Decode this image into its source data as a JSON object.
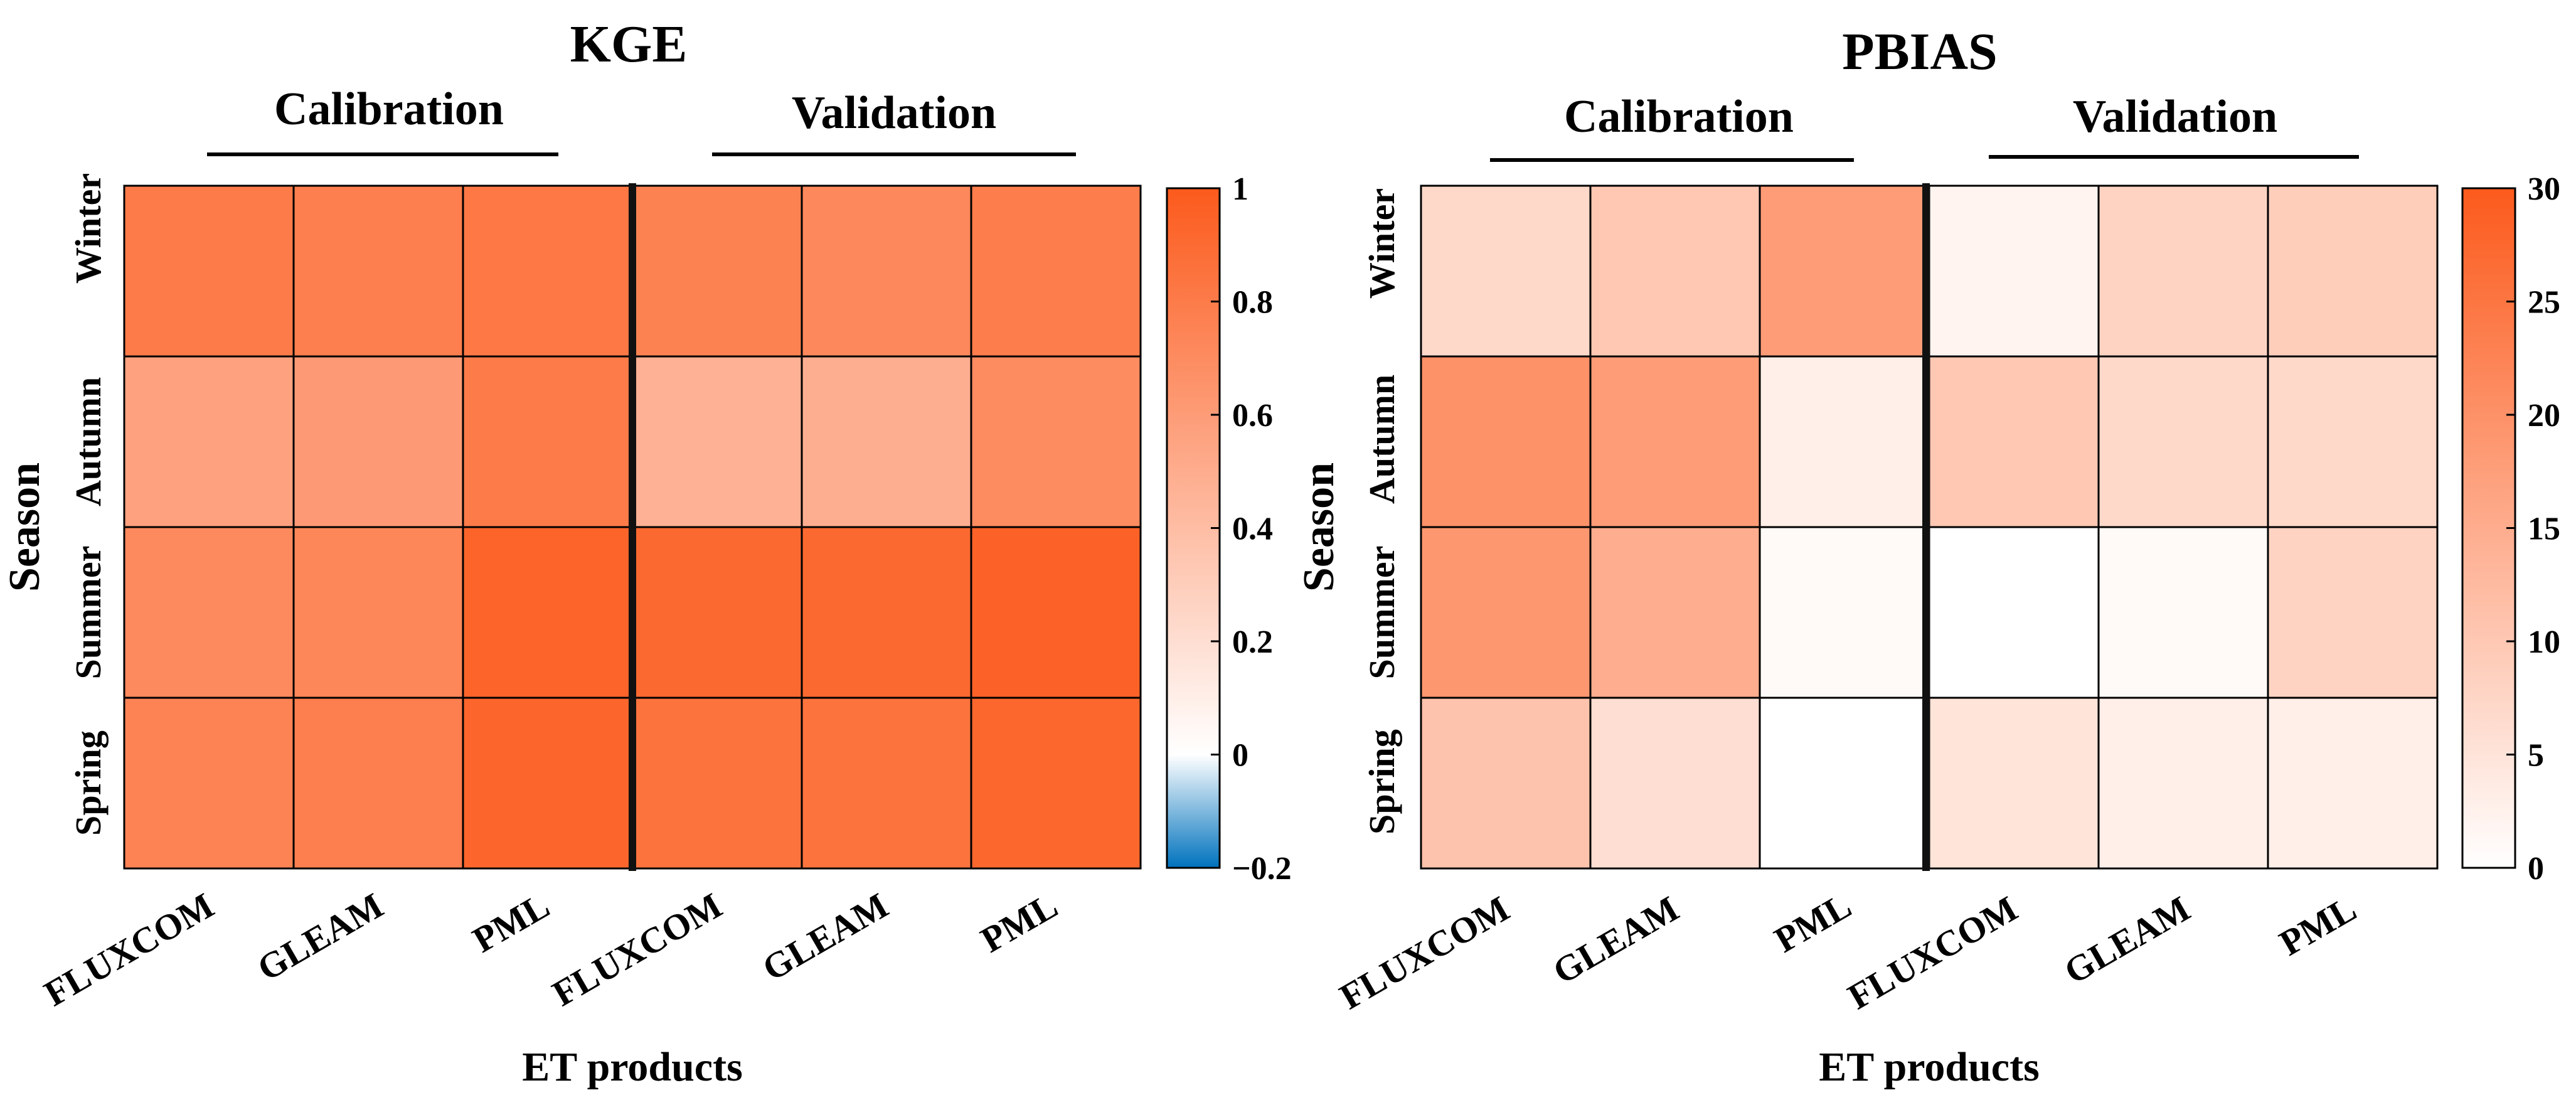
{
  "chart_data": [
    {
      "type": "heatmap",
      "title": "KGE",
      "groups": [
        "Calibration",
        "Validation"
      ],
      "columns": [
        "FLUXCOM",
        "GLEAM",
        "PML",
        "FLUXCOM",
        "GLEAM",
        "PML"
      ],
      "rows": [
        "Winter",
        "Autumn",
        "Summer",
        "Spring"
      ],
      "xlabel": "ET products",
      "ylabel": "Season",
      "values": [
        [
          0.8,
          0.78,
          0.82,
          0.76,
          0.72,
          0.79
        ],
        [
          0.57,
          0.61,
          0.8,
          0.47,
          0.49,
          0.7
        ],
        [
          0.71,
          0.73,
          0.94,
          0.91,
          0.91,
          0.95
        ],
        [
          0.75,
          0.78,
          0.93,
          0.85,
          0.85,
          0.92
        ]
      ],
      "colorbar": {
        "min": -0.2,
        "max": 1,
        "ticks": [
          1,
          0.8,
          0.6,
          0.4,
          0.2,
          0,
          -0.2
        ],
        "tick_labels": [
          "1",
          "0.8",
          "0.6",
          "0.4",
          "0.2",
          "0",
          "−0.2"
        ]
      }
    },
    {
      "type": "heatmap",
      "title": "PBIAS",
      "groups": [
        "Calibration",
        "Validation"
      ],
      "columns": [
        "FLUXCOM",
        "GLEAM",
        "PML",
        "FLUXCOM",
        "GLEAM",
        "PML"
      ],
      "rows": [
        "Winter",
        "Autumn",
        "Summer",
        "Spring"
      ],
      "xlabel": "ET products",
      "ylabel": "Season",
      "values": [
        [
          7,
          10,
          18,
          2,
          8,
          9
        ],
        [
          20,
          18,
          3,
          10,
          7,
          7
        ],
        [
          19,
          15,
          1,
          0,
          1,
          8
        ],
        [
          11,
          6,
          0,
          5,
          3,
          3
        ]
      ],
      "colorbar": {
        "min": 0,
        "max": 30,
        "ticks": [
          30,
          25,
          20,
          15,
          10,
          5,
          0
        ],
        "tick_labels": [
          "30",
          "25",
          "20",
          "15",
          "10",
          "5",
          "0"
        ]
      }
    }
  ],
  "colors": {
    "high": "#fc5a1c",
    "white": "#ffffff",
    "low": "#0072bd",
    "grid": "#000000"
  }
}
